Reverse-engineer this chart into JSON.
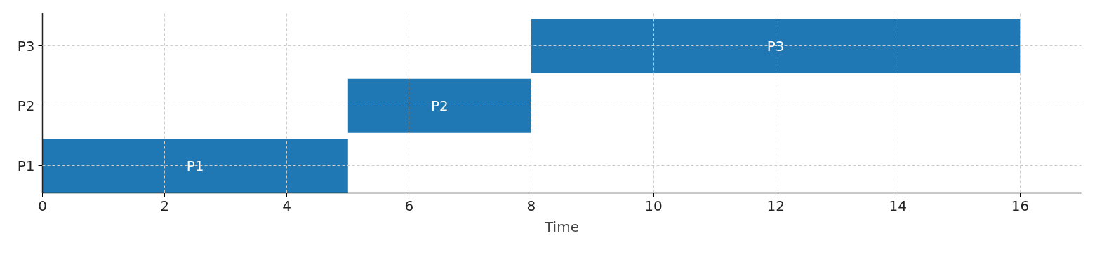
{
  "chart_data": {
    "type": "bar",
    "orientation": "horizontal",
    "xlabel": "Time",
    "categories": [
      "P3",
      "P2",
      "P1"
    ],
    "values": [
      8,
      3,
      5
    ],
    "base": [
      8,
      5,
      0
    ],
    "color": "#1f77b4",
    "xlim": [
      0,
      17
    ],
    "xticks": [
      0,
      2,
      4,
      6,
      8,
      10,
      12,
      14,
      16
    ],
    "grid": true,
    "annotations": [
      {
        "text": "P3",
        "x": 12,
        "y": "P3"
      },
      {
        "text": "P2",
        "x": 6.5,
        "y": "P2"
      },
      {
        "text": "P1",
        "x": 2.5,
        "y": "P1"
      }
    ]
  }
}
